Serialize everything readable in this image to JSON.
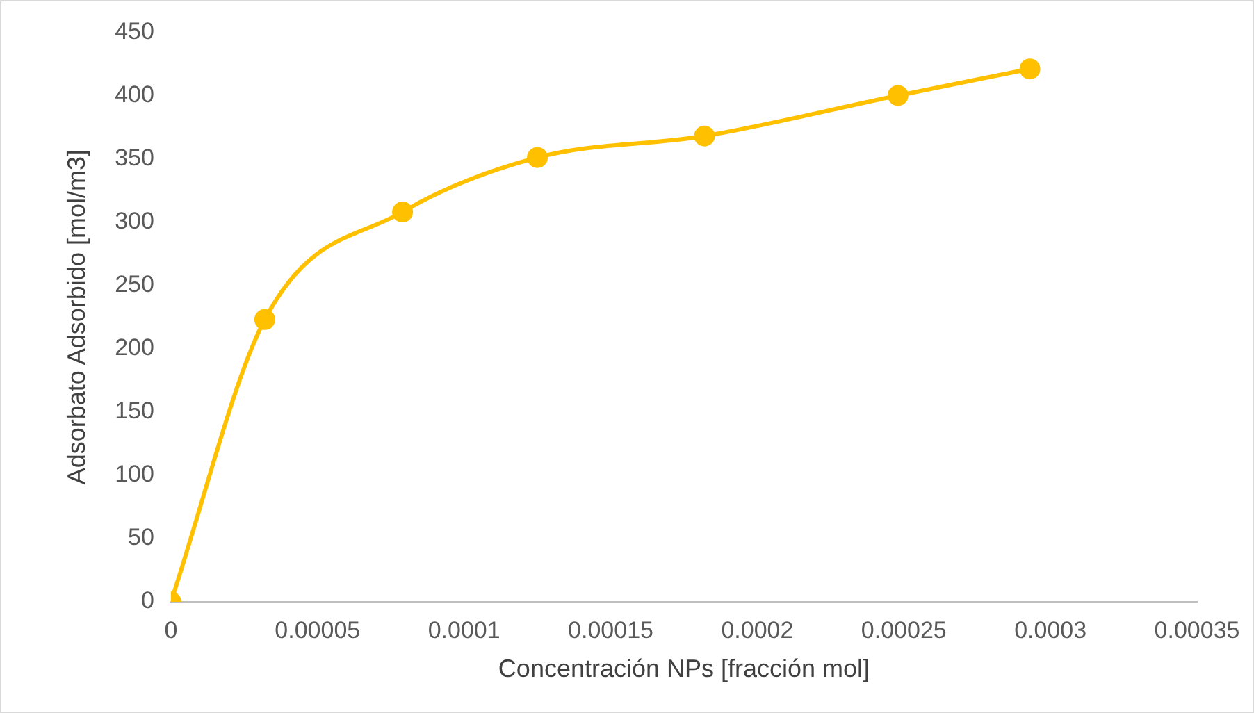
{
  "chart_data": {
    "type": "line",
    "xlabel": "Concentración NPs [fracción mol]",
    "ylabel": "Adsorbato Adsorbido [mol/m3]",
    "x": [
      0,
      3.2e-05,
      7.9e-05,
      0.000125,
      0.000182,
      0.000248,
      0.000293
    ],
    "series": [
      {
        "color": "#ffc000",
        "values": [
          0,
          223,
          308,
          351,
          368,
          400,
          421
        ]
      }
    ],
    "xlim": [
      0,
      0.00035
    ],
    "xticks": [
      0,
      {
        "value": 5e-05,
        "label": "0.00005"
      },
      0.0001,
      0.00015,
      0.0002,
      0.00025,
      0.0003,
      0.00035
    ],
    "ylim": [
      0,
      450
    ],
    "yticks": [
      0,
      50,
      100,
      150,
      200,
      250,
      300,
      350,
      400,
      450
    ],
    "grid": false,
    "legend": false,
    "marker": "circle",
    "line_style": "solid"
  }
}
